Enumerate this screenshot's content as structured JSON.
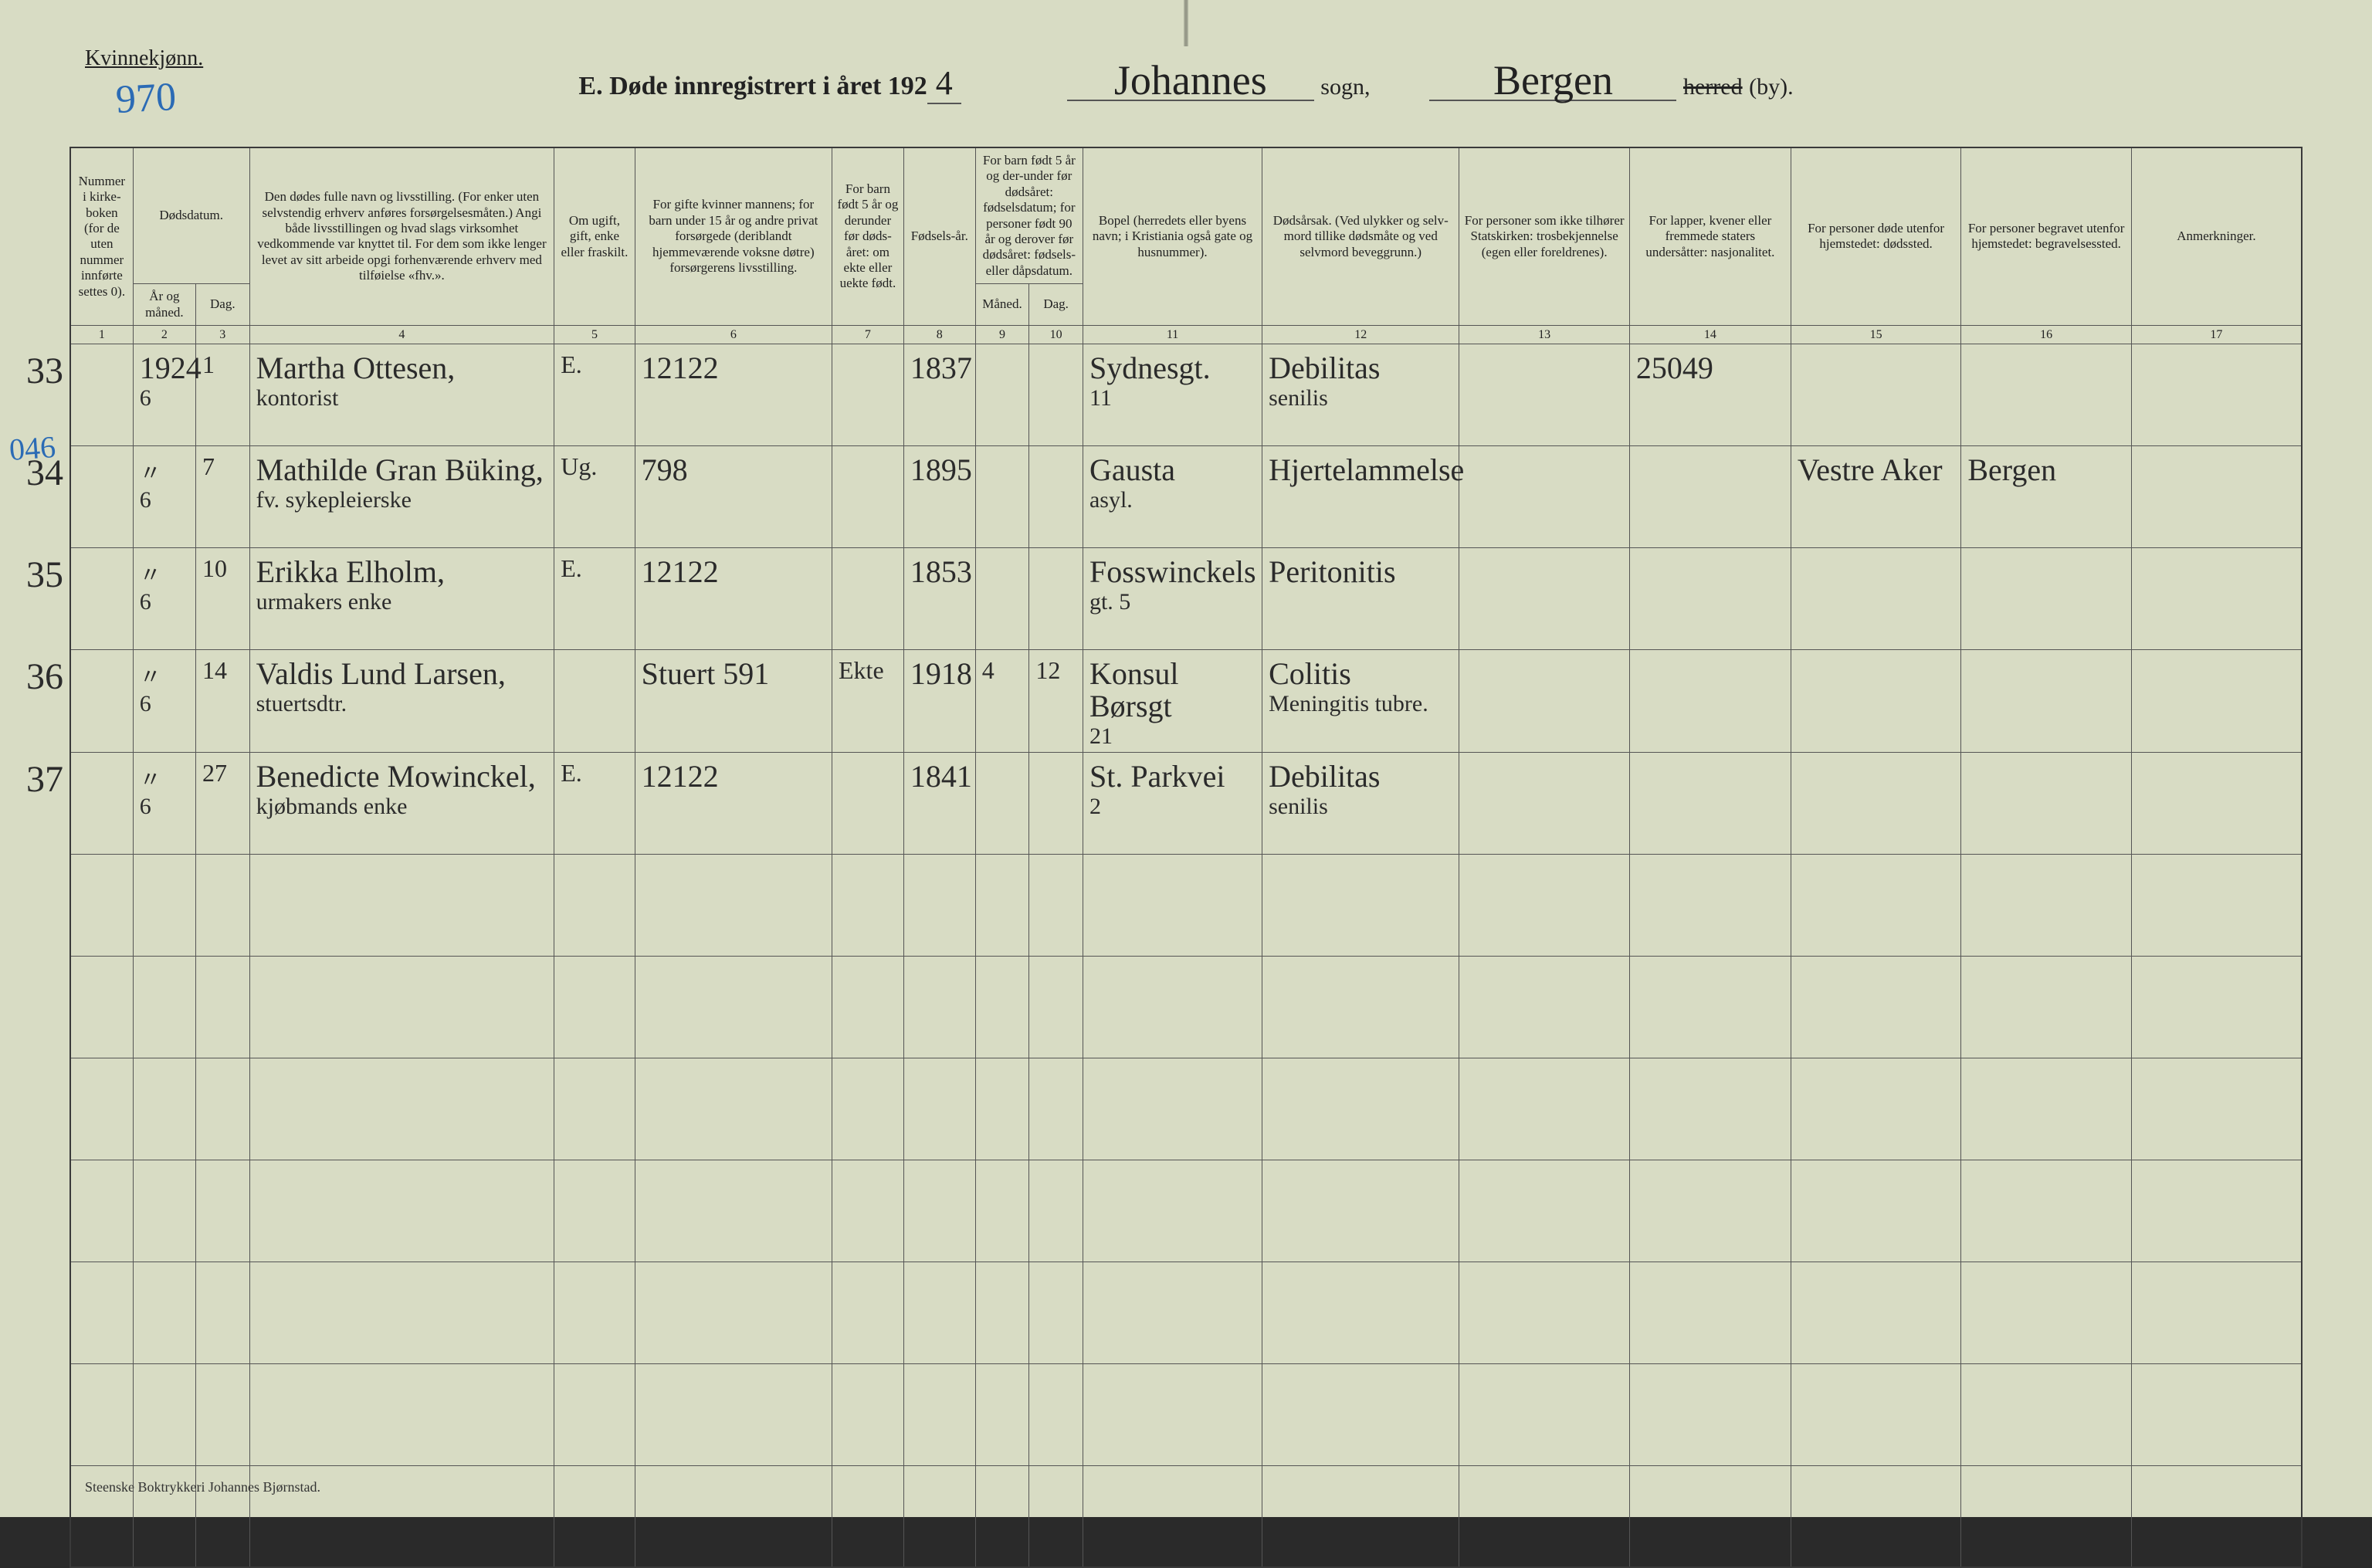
{
  "page": {
    "gender_label": "Kvinnekjønn.",
    "hand_page_number": "970",
    "title_prefix": "E.  Døde innregistrert i året 192",
    "year_last_digit": "4",
    "sogn_hand": "Johannes",
    "sogn_printed": "sogn,",
    "herred_hand": "Bergen",
    "herred_printed_struck": "herred",
    "herred_printed_tail": "(by).",
    "footer": "Steenske Boktrykkeri Johannes Bjørnstad."
  },
  "columns": {
    "c1": {
      "num": "1",
      "label": "Nummer i kirke-boken (for de uten nummer innførte settes 0)."
    },
    "c2a": {
      "label": "Dødsdatum."
    },
    "c2": {
      "num": "2",
      "label": "År og måned."
    },
    "c3": {
      "num": "3",
      "label": "Dag."
    },
    "c4": {
      "num": "4",
      "label": "Den dødes fulle navn og livsstilling. (For enker uten selvstendig erhverv anføres forsørgelsesmåten.) Angi både livsstillingen og hvad slags virksomhet vedkommende var knyttet til. For dem som ikke lenger levet av sitt arbeide opgi forhenværende erhverv med tilføielse «fhv.»."
    },
    "c5": {
      "num": "5",
      "label": "Om ugift, gift, enke eller fraskilt."
    },
    "c6": {
      "num": "6",
      "label": "For gifte kvinner mannens; for barn under 15 år og andre privat forsørgede (deriblandt hjemmeværende voksne døtre) forsørgerens livsstilling."
    },
    "c7": {
      "num": "7",
      "label": "For barn født 5 år og derunder før døds-året: om ekte eller uekte født."
    },
    "c8": {
      "num": "8",
      "label": "Fødsels-år."
    },
    "c9a": {
      "label": "For barn født 5 år og der-under før dødsåret: fødselsdatum; for personer født 90 år og derover før dødsåret: fødsels- eller dåpsdatum."
    },
    "c9": {
      "num": "9",
      "label": "Måned."
    },
    "c10": {
      "num": "10",
      "label": "Dag."
    },
    "c11": {
      "num": "11",
      "label": "Bopel (herredets eller byens navn; i Kristiania også gate og husnummer)."
    },
    "c12": {
      "num": "12",
      "label": "Dødsårsak. (Ved ulykker og selv-mord tillike dødsmåte og ved selvmord beveggrunn.)"
    },
    "c13": {
      "num": "13",
      "label": "For personer som ikke tilhører Statskirken: trosbekjennelse (egen eller foreldrenes)."
    },
    "c14": {
      "num": "14",
      "label": "For lapper, kvener eller fremmede staters undersåtter: nasjonalitet."
    },
    "c15": {
      "num": "15",
      "label": "For personer døde utenfor hjemstedet: dødssted."
    },
    "c16": {
      "num": "16",
      "label": "For personer begravet utenfor hjemstedet: begravelsessted."
    },
    "c17": {
      "num": "17",
      "label": "Anmerkninger."
    }
  },
  "rows": [
    {
      "outside_num": "33",
      "c1": "",
      "c2": "1924\n6",
      "c3": "1",
      "c4": "Martha Ottesen,",
      "c4_sub": "kontorist",
      "c5": "E.",
      "c6": "12122",
      "c7": "",
      "c8": "1837",
      "c9": "",
      "c10": "",
      "c11": "Sydnesgt.\n11",
      "c12": "Debilitas\nsenilis",
      "c13": "",
      "c14": "25049",
      "c15": "",
      "c16": "",
      "c17": ""
    },
    {
      "outside_num": "34",
      "blue_note": "046",
      "c1": "",
      "c2": "〃\n6",
      "c3": "7",
      "c4": "Mathilde Gran Büking,",
      "c4_sub": "fv. sykepleierske",
      "c5": "Ug.",
      "c6": "798",
      "c7": "",
      "c8": "1895",
      "c9": "",
      "c10": "",
      "c11": "Gausta\nasyl.",
      "c12": "Hjertelammelse",
      "c13": "",
      "c14": "",
      "c15": "Vestre Aker",
      "c16": "Bergen",
      "c17": ""
    },
    {
      "outside_num": "35",
      "c1": "",
      "c2": "〃\n6",
      "c3": "10",
      "c4": "Erikka Elholm,",
      "c4_sub": "urmakers enke",
      "c5": "E.",
      "c6": "12122",
      "c7": "",
      "c8": "1853",
      "c9": "",
      "c10": "",
      "c11": "Fosswinckels\ngt. 5",
      "c12": "Peritonitis",
      "c13": "",
      "c14": "",
      "c15": "",
      "c16": "",
      "c17": ""
    },
    {
      "outside_num": "36",
      "c1": "",
      "c2": "〃\n6",
      "c3": "14",
      "c4": "Valdis Lund Larsen,",
      "c4_sub": "stuertsdtr.",
      "c5": "",
      "c6": "Stuert  591",
      "c7": "Ekte",
      "c8": "1918",
      "c9": "4",
      "c10": "12",
      "c11": "Konsul Børsgt\n21",
      "c12": "Colitis\nMeningitis tubre.",
      "c13": "",
      "c14": "",
      "c15": "",
      "c16": "",
      "c17": ""
    },
    {
      "outside_num": "37",
      "c1": "",
      "c2": "〃\n6",
      "c3": "27",
      "c4": "Benedicte Mowinckel,",
      "c4_sub": "kjøbmands enke",
      "c5": "E.",
      "c6": "12122",
      "c7": "",
      "c8": "1841",
      "c9": "",
      "c10": "",
      "c11": "St. Parkvei\n2",
      "c12": "Debilitas\nsenilis",
      "c13": "",
      "c14": "",
      "c15": "",
      "c16": "",
      "c17": ""
    }
  ],
  "blank_row_count": 7,
  "style": {
    "page_bg": "#d8dcc4",
    "ink": "#2b2b2b",
    "blue_ink": "#2b6bb5",
    "rule": "#555555"
  }
}
